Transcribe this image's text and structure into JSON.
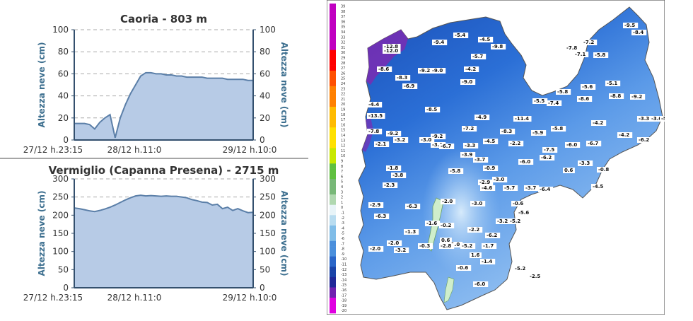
{
  "chart_data": [
    {
      "type": "area",
      "title": "Caoria - 803 m",
      "ylabel_left": "Altezza neve (cm)",
      "ylabel_right": "Altezza neve (cm)",
      "ylim": [
        0,
        100
      ],
      "yticks": [
        0,
        20,
        40,
        60,
        80,
        100
      ],
      "xtick_labels": [
        "27/12 h.23:15",
        "28/12 h.11:0",
        "29/12 h.10:0"
      ],
      "grid": true,
      "fill_color": "#b7cbe6",
      "line_color": "#5b7fa8",
      "series": [
        {
          "x": [
            0,
            1,
            2,
            3,
            4,
            5,
            6,
            7,
            8,
            9,
            10,
            11,
            12,
            13,
            14,
            15,
            16,
            17,
            18,
            19,
            20,
            21,
            22,
            23,
            24,
            25,
            26,
            27,
            28,
            29,
            30,
            31,
            32,
            33,
            34,
            35
          ],
          "values": [
            15,
            15,
            15,
            14,
            10,
            16,
            20,
            23,
            2,
            20,
            32,
            42,
            50,
            58,
            61,
            61,
            60,
            60,
            59,
            59,
            58,
            58,
            57,
            57,
            57,
            57,
            56,
            56,
            56,
            56,
            55,
            55,
            55,
            55,
            54,
            54
          ]
        }
      ]
    },
    {
      "type": "area",
      "title": "Vermiglio (Capanna Presena) - 2715 m",
      "ylabel_left": "Altezza neve (cm)",
      "ylabel_right": "Altezza neve (cm)",
      "ylim": [
        0,
        300
      ],
      "yticks": [
        0,
        50,
        100,
        150,
        200,
        250,
        300
      ],
      "xtick_labels": [
        "27/12 h.23:15",
        "28/12 h.11:0",
        "29/12 h.10:0"
      ],
      "grid": true,
      "fill_color": "#b7cbe6",
      "line_color": "#5b7fa8",
      "series": [
        {
          "x": [
            0,
            1,
            2,
            3,
            4,
            5,
            6,
            7,
            8,
            9,
            10,
            11,
            12,
            13,
            14,
            15,
            16,
            17,
            18,
            19,
            20,
            21,
            22,
            23,
            24,
            25,
            26,
            27,
            28,
            29,
            30,
            31,
            32,
            33,
            34,
            35
          ],
          "values": [
            220,
            218,
            215,
            212,
            210,
            213,
            217,
            222,
            228,
            235,
            242,
            248,
            253,
            255,
            253,
            254,
            253,
            252,
            253,
            252,
            252,
            250,
            248,
            243,
            240,
            236,
            235,
            228,
            230,
            218,
            222,
            213,
            218,
            212,
            207,
            208
          ]
        }
      ]
    }
  ],
  "map": {
    "colorbar_ticks": [
      "39",
      "38",
      "37",
      "36",
      "35",
      "34",
      "33",
      "32",
      "31",
      "30",
      "29",
      "28",
      "27",
      "26",
      "25",
      "24",
      "23",
      "22",
      "21",
      "20",
      "19",
      "18",
      "17",
      "16",
      "15",
      "14",
      "13",
      "12",
      "11",
      "10",
      "9",
      "8",
      "7",
      "6",
      "5",
      "4",
      "3",
      "2",
      "1",
      "0",
      "-1",
      "-2",
      "-3",
      "-4",
      "-5",
      "-6",
      "-7",
      "-8",
      "-9",
      "-10",
      "-11",
      "-12",
      "-13",
      "-14",
      "-15",
      "-16",
      "-17",
      "-18",
      "-19",
      "-20"
    ],
    "station_values": [
      "-12.8",
      "-12.0",
      "-9.4",
      "-5.4",
      "-4.5",
      "-9.8",
      "-9.5",
      "-8.4",
      "-7.2",
      "-7.8",
      "-7.1",
      "-5.8",
      "-5.7",
      "-8.6",
      "-9.2",
      "-9.0",
      "-4.2",
      "-8.3",
      "-9.0",
      "-6.9",
      "-5.1",
      "-5.6",
      "-5.8",
      "-8.6",
      "-8.8",
      "-4.4",
      "-9.2",
      "-8.5",
      "-5.5",
      "-7.4",
      "-13.5",
      "-4.9",
      "-11.4",
      "-3.3",
      "-3.0",
      "-5.8",
      "-7.2",
      "-8.3",
      "-5.9",
      "-5.8",
      "-4.2",
      "-7.8",
      "-9.2",
      "-9.2",
      "-3.0",
      "-3.2",
      "-4.2",
      "-6.2",
      "-6.0",
      "-4.5",
      "-3.1",
      "-2.2",
      "-2.1",
      "-6.7",
      "-3.3",
      "-7.5",
      "-6.7",
      "-3.9",
      "-6.2",
      "-3.3",
      "-6.0",
      "-3.7",
      "-1.8",
      "-5.8",
      "-0.9",
      "-3.8",
      "-3.0",
      "0.6",
      "-0.8",
      "-2.3",
      "-2.9",
      "-4.6",
      "-5.7",
      "-3.7",
      "-6.4",
      "-4.5",
      "-2.0",
      "-2.9",
      "-6.3",
      "-3.0",
      "-0.6",
      "-5.6",
      "-6.3",
      "-1.6",
      "-3.2",
      "-5.2",
      "-1.3",
      "-0.2",
      "-2.2",
      "-6.2",
      "-2.0",
      "0.6",
      "-1.0",
      "-2.0",
      "-3.2",
      "1.6",
      "-1.4",
      "-0.6",
      "-5.2",
      "-2.5",
      "-6.0",
      "-0.3",
      "-2.8",
      "-5.2",
      "-1.7"
    ]
  }
}
